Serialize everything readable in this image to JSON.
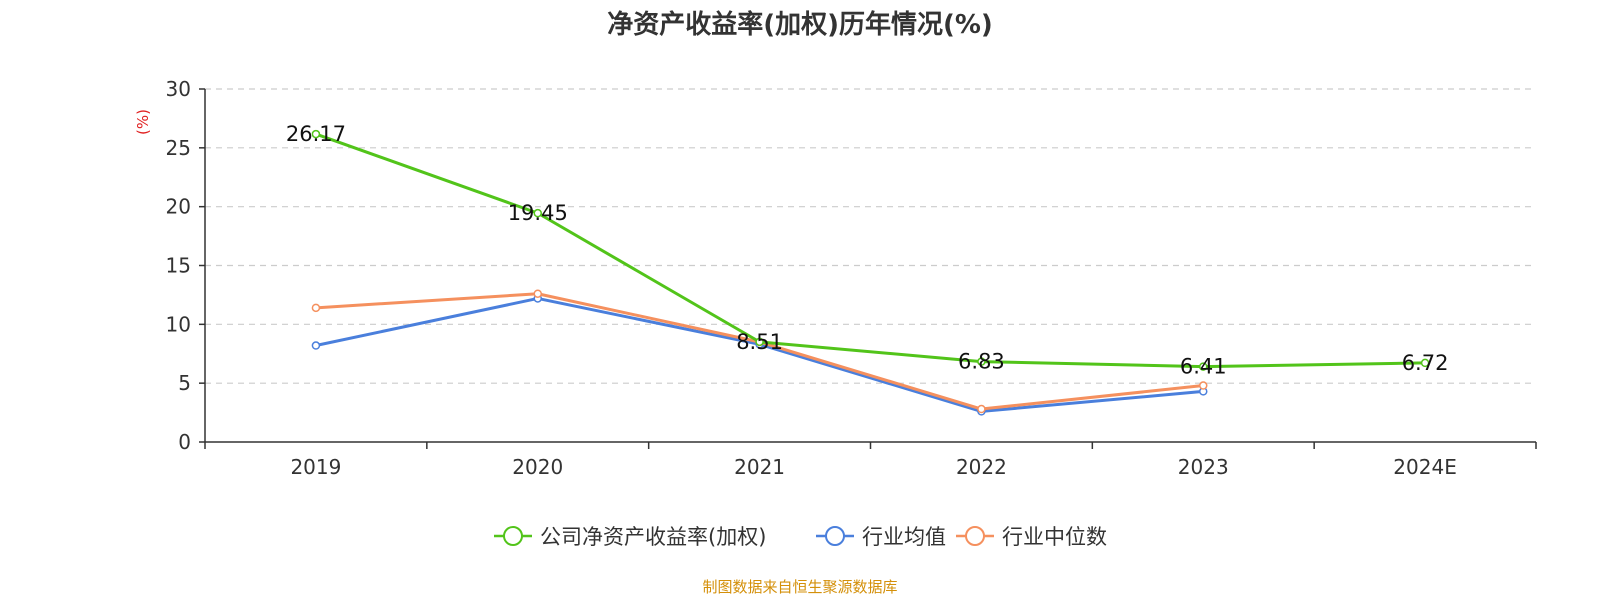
{
  "chart_data": {
    "type": "line",
    "title": "净资产收益率(加权)历年情况(%)",
    "ylabel": "(%)",
    "xlabel": "",
    "ylim": [
      0,
      30
    ],
    "yticks": [
      0,
      5,
      10,
      15,
      20,
      25,
      30
    ],
    "categories": [
      "2019",
      "2020",
      "2021",
      "2022",
      "2023",
      "2024E"
    ],
    "grid": true,
    "legend_position": "bottom-center",
    "series": [
      {
        "name": "公司净资产收益率(加权)",
        "color": "#52c41a",
        "values": [
          26.17,
          19.45,
          8.51,
          6.83,
          6.41,
          6.72
        ],
        "labels": [
          "26.17",
          "19.45",
          "8.51",
          "6.83",
          "6.41",
          "6.72"
        ]
      },
      {
        "name": "行业均值",
        "color": "#4a7fdc",
        "values": [
          8.2,
          12.2,
          8.3,
          2.6,
          4.3,
          null
        ]
      },
      {
        "name": "行业中位数",
        "color": "#f5905e",
        "values": [
          11.4,
          12.6,
          8.5,
          2.8,
          4.8,
          null
        ]
      }
    ],
    "source": "制图数据来自恒生聚源数据库",
    "source_color": "#d4900a",
    "ylabel_color": "#e02020"
  }
}
